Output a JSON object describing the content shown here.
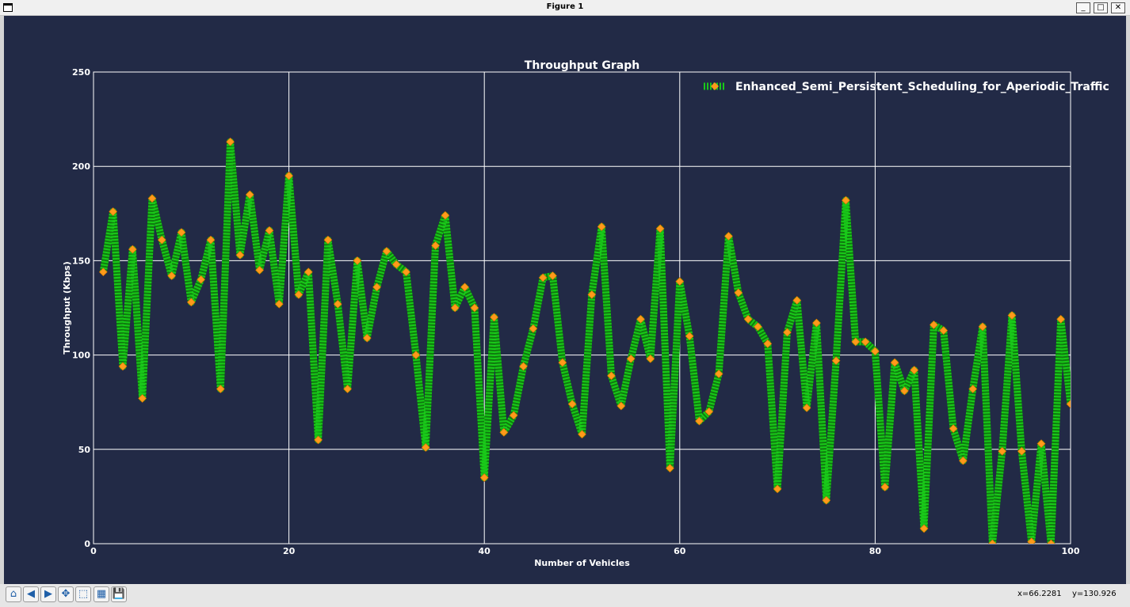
{
  "window": {
    "title": "Figure 1",
    "buttons": [
      "_",
      "□",
      "✕"
    ]
  },
  "colors": {
    "background": "#222a46",
    "line": "#19c919",
    "marker": "#ff9a1a",
    "grid": "#ffffff",
    "text": "#ffffff"
  },
  "toolbar": {
    "icons": [
      {
        "name": "home-icon",
        "glyph": "⌂"
      },
      {
        "name": "back-icon",
        "glyph": "◀"
      },
      {
        "name": "forward-icon",
        "glyph": "▶"
      },
      {
        "name": "pan-icon",
        "glyph": "✥"
      },
      {
        "name": "zoom-icon",
        "glyph": "⬚"
      },
      {
        "name": "configure-subplots-icon",
        "glyph": "▦"
      },
      {
        "name": "save-icon",
        "glyph": "💾"
      }
    ]
  },
  "status": {
    "x_readout": "x=66.2281",
    "y_readout": "y=130.926"
  },
  "chart_data": {
    "type": "line",
    "title": "Throughput Graph",
    "xlabel": "Number of Vehicles",
    "ylabel": "Throughput (Kbps)",
    "xlim": [
      0,
      100
    ],
    "ylim": [
      0,
      250
    ],
    "xticks": [
      0,
      20,
      40,
      60,
      80,
      100
    ],
    "yticks": [
      0,
      50,
      100,
      150,
      200,
      250
    ],
    "grid": true,
    "legend_position": "top-right",
    "series": [
      {
        "name": "Enhanced_Semi_Persistent_Scheduling_for_Aperiodic_Traffic",
        "x": [
          1,
          2,
          3,
          4,
          5,
          6,
          7,
          8,
          9,
          10,
          11,
          12,
          13,
          14,
          15,
          16,
          17,
          18,
          19,
          20,
          21,
          22,
          23,
          24,
          25,
          26,
          27,
          28,
          29,
          30,
          31,
          32,
          33,
          34,
          35,
          36,
          37,
          38,
          39,
          40,
          41,
          42,
          43,
          44,
          45,
          46,
          47,
          48,
          49,
          50,
          51,
          52,
          53,
          54,
          55,
          56,
          57,
          58,
          59,
          60,
          61,
          62,
          63,
          64,
          65,
          66,
          67,
          68,
          69,
          70,
          71,
          72,
          73,
          74,
          75,
          76,
          77,
          78,
          79,
          80,
          81,
          82,
          83,
          84,
          85,
          86,
          87,
          88,
          89,
          90,
          91,
          92,
          93,
          94,
          95,
          96,
          97,
          98,
          99,
          100
        ],
        "y": [
          144,
          176,
          94,
          156,
          77,
          183,
          161,
          142,
          165,
          128,
          140,
          161,
          82,
          213,
          153,
          185,
          145,
          166,
          127,
          195,
          132,
          144,
          55,
          161,
          127,
          82,
          150,
          109,
          136,
          155,
          148,
          144,
          100,
          51,
          158,
          174,
          125,
          136,
          125,
          35,
          120,
          59,
          68,
          94,
          114,
          141,
          142,
          96,
          74,
          58,
          132,
          168,
          89,
          73,
          98,
          119,
          98,
          167,
          40,
          139,
          110,
          65,
          70,
          90,
          163,
          133,
          119,
          115,
          106,
          29,
          112,
          129,
          72,
          117,
          23,
          97,
          182,
          107,
          107,
          102,
          30,
          96,
          81,
          92,
          8,
          116,
          113,
          61,
          44,
          82,
          115,
          0,
          49,
          121,
          49,
          1,
          53,
          0,
          119,
          74
        ]
      }
    ]
  }
}
